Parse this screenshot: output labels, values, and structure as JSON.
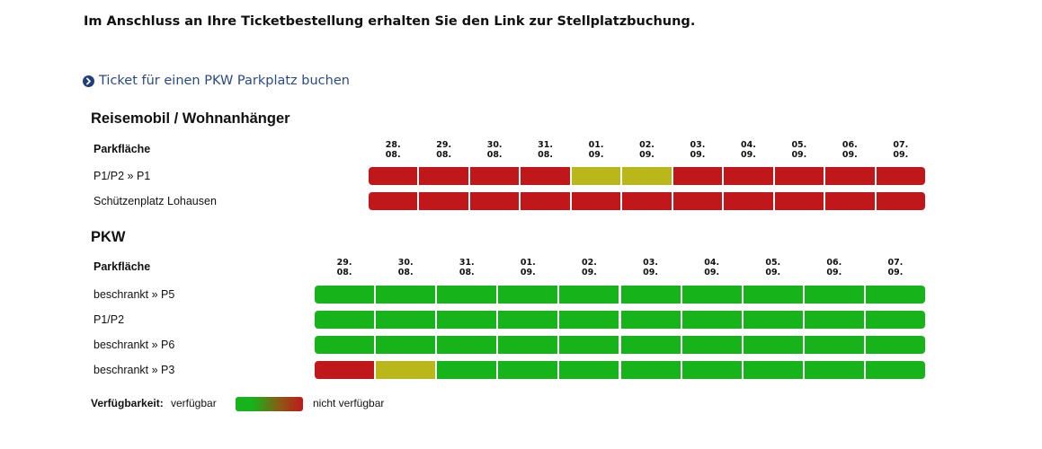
{
  "intro_text": "Im Anschluss an Ihre Ticketbestellung erhalten Sie den Link zur Stellplatzbuchung.",
  "booking_link": {
    "icon": "chevron-circle-right-icon",
    "label": "Ticket für einen PKW Parkplatz buchen"
  },
  "colors": {
    "available": "#16b31a",
    "partial": "#bab71a",
    "unavailable": "#c0181a",
    "link": "#2a4a86"
  },
  "sections": [
    {
      "title": "Reisemobil / Wohnanhänger",
      "column_header": "Parkfläche",
      "dates": [
        [
          "28.",
          "08."
        ],
        [
          "29.",
          "08."
        ],
        [
          "30.",
          "08."
        ],
        [
          "31.",
          "08."
        ],
        [
          "01.",
          "09."
        ],
        [
          "02.",
          "09."
        ],
        [
          "03.",
          "09."
        ],
        [
          "04.",
          "09."
        ],
        [
          "05.",
          "09."
        ],
        [
          "06.",
          "09."
        ],
        [
          "07.",
          "09."
        ]
      ],
      "rows": [
        {
          "label": "P1/P2 » P1",
          "status": [
            "nicht verfügbar",
            "nicht verfügbar",
            "nicht verfügbar",
            "nicht verfügbar",
            "teilweise",
            "teilweise",
            "nicht verfügbar",
            "nicht verfügbar",
            "nicht verfügbar",
            "nicht verfügbar",
            "nicht verfügbar"
          ]
        },
        {
          "label": "Schützenplatz Lohausen",
          "status": [
            "nicht verfügbar",
            "nicht verfügbar",
            "nicht verfügbar",
            "nicht verfügbar",
            "nicht verfügbar",
            "nicht verfügbar",
            "nicht verfügbar",
            "nicht verfügbar",
            "nicht verfügbar",
            "nicht verfügbar",
            "nicht verfügbar"
          ]
        }
      ]
    },
    {
      "title": "PKW",
      "column_header": "Parkfläche",
      "dates": [
        [
          "29.",
          "08."
        ],
        [
          "30.",
          "08."
        ],
        [
          "31.",
          "08."
        ],
        [
          "01.",
          "09."
        ],
        [
          "02.",
          "09."
        ],
        [
          "03.",
          "09."
        ],
        [
          "04.",
          "09."
        ],
        [
          "05.",
          "09."
        ],
        [
          "06.",
          "09."
        ],
        [
          "07.",
          "09."
        ]
      ],
      "rows": [
        {
          "label": "beschrankt » P5",
          "status": [
            "verfügbar",
            "verfügbar",
            "verfügbar",
            "verfügbar",
            "verfügbar",
            "verfügbar",
            "verfügbar",
            "verfügbar",
            "verfügbar",
            "verfügbar"
          ]
        },
        {
          "label": "P1/P2",
          "status": [
            "verfügbar",
            "verfügbar",
            "verfügbar",
            "verfügbar",
            "verfügbar",
            "verfügbar",
            "verfügbar",
            "verfügbar",
            "verfügbar",
            "verfügbar"
          ]
        },
        {
          "label": "beschrankt » P6",
          "status": [
            "verfügbar",
            "verfügbar",
            "verfügbar",
            "verfügbar",
            "verfügbar",
            "verfügbar",
            "verfügbar",
            "verfügbar",
            "verfügbar",
            "verfügbar"
          ]
        },
        {
          "label": "beschrankt » P3",
          "status": [
            "nicht verfügbar",
            "teilweise",
            "verfügbar",
            "verfügbar",
            "verfügbar",
            "verfügbar",
            "verfügbar",
            "verfügbar",
            "verfügbar",
            "verfügbar"
          ]
        }
      ]
    }
  ],
  "legend": {
    "title": "Verfügbarkeit:",
    "left_label": "verfügbar",
    "right_label": "nicht verfügbar"
  }
}
